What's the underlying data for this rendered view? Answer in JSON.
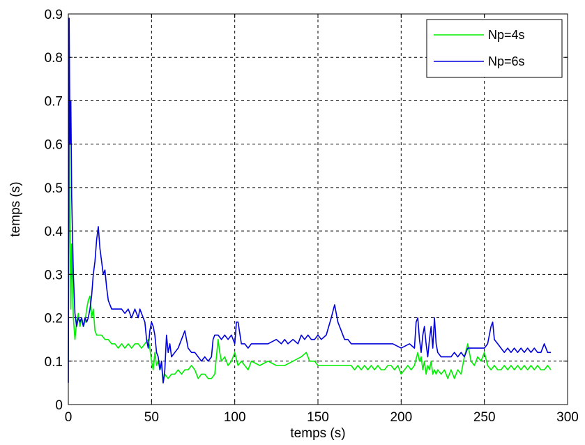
{
  "chart_data": {
    "type": "line",
    "title": "",
    "xlabel": "temps (s)",
    "ylabel": "temps (s)",
    "xlim": [
      0,
      300
    ],
    "ylim": [
      0,
      0.9
    ],
    "xticks": [
      "0",
      "50",
      "100",
      "150",
      "200",
      "250",
      "300"
    ],
    "yticks": [
      "0",
      "0.1",
      "0.2",
      "0.3",
      "0.4",
      "0.5",
      "0.6",
      "0.7",
      "0.8",
      "0.9"
    ],
    "grid": true,
    "legend_position": "top-right",
    "series": [
      {
        "name": "Np=4s",
        "color": "#00ee00",
        "x": [
          0,
          0.5,
          1,
          1.5,
          2,
          3,
          4,
          5,
          6,
          7,
          8,
          9,
          10,
          11,
          12,
          13,
          14,
          15,
          16,
          17,
          18,
          20,
          22,
          24,
          26,
          28,
          30,
          32,
          34,
          36,
          38,
          40,
          42,
          44,
          46,
          48,
          49,
          50,
          51,
          52,
          53,
          54,
          55,
          56,
          57,
          58,
          60,
          62,
          64,
          66,
          68,
          70,
          72,
          74,
          76,
          78,
          80,
          82,
          84,
          86,
          88,
          89,
          90,
          91,
          92,
          94,
          96,
          98,
          100,
          102,
          104,
          106,
          108,
          110,
          115,
          120,
          125,
          130,
          135,
          140,
          143,
          145,
          148,
          150,
          155,
          160,
          165,
          170,
          172,
          174,
          176,
          178,
          180,
          182,
          184,
          186,
          188,
          190,
          192,
          194,
          196,
          198,
          200,
          202,
          204,
          206,
          208,
          210,
          211,
          212,
          213,
          214,
          215,
          216,
          217,
          218,
          219,
          220,
          221,
          222,
          224,
          226,
          228,
          230,
          232,
          234,
          236,
          238,
          240,
          242,
          244,
          246,
          248,
          250,
          252,
          254,
          256,
          258,
          260,
          262,
          264,
          266,
          268,
          270,
          272,
          274,
          276,
          278,
          280,
          282,
          284,
          286,
          288,
          290
        ],
        "y": [
          0.1,
          0.65,
          0.4,
          0.22,
          0.37,
          0.2,
          0.15,
          0.19,
          0.21,
          0.18,
          0.2,
          0.18,
          0.19,
          0.22,
          0.24,
          0.25,
          0.2,
          0.22,
          0.17,
          0.16,
          0.16,
          0.16,
          0.15,
          0.15,
          0.14,
          0.14,
          0.13,
          0.14,
          0.13,
          0.14,
          0.13,
          0.14,
          0.14,
          0.13,
          0.14,
          0.15,
          0.13,
          0.1,
          0.08,
          0.12,
          0.09,
          0.1,
          0.08,
          0.09,
          0.05,
          0.07,
          0.06,
          0.07,
          0.07,
          0.08,
          0.07,
          0.08,
          0.08,
          0.09,
          0.08,
          0.06,
          0.07,
          0.07,
          0.06,
          0.06,
          0.07,
          0.11,
          0.15,
          0.12,
          0.1,
          0.11,
          0.09,
          0.1,
          0.12,
          0.09,
          0.1,
          0.09,
          0.08,
          0.1,
          0.09,
          0.1,
          0.09,
          0.09,
          0.1,
          0.11,
          0.12,
          0.1,
          0.1,
          0.09,
          0.09,
          0.09,
          0.09,
          0.09,
          0.08,
          0.09,
          0.08,
          0.09,
          0.08,
          0.09,
          0.08,
          0.09,
          0.08,
          0.08,
          0.09,
          0.09,
          0.08,
          0.09,
          0.07,
          0.08,
          0.09,
          0.08,
          0.09,
          0.12,
          0.1,
          0.11,
          0.08,
          0.1,
          0.07,
          0.09,
          0.08,
          0.1,
          0.07,
          0.08,
          0.07,
          0.08,
          0.07,
          0.08,
          0.06,
          0.08,
          0.06,
          0.08,
          0.07,
          0.11,
          0.14,
          0.1,
          0.09,
          0.11,
          0.1,
          0.12,
          0.09,
          0.08,
          0.09,
          0.08,
          0.08,
          0.09,
          0.08,
          0.09,
          0.08,
          0.09,
          0.08,
          0.09,
          0.08,
          0.09,
          0.08,
          0.09,
          0.08,
          0.08,
          0.09,
          0.08
        ],
        "legend_text": "Np=4s"
      },
      {
        "name": "Np=6s",
        "color": "#0000dd",
        "x": [
          0,
          0.5,
          1,
          1.5,
          2,
          3,
          4,
          5,
          6,
          7,
          8,
          9,
          10,
          11,
          12,
          13,
          14,
          15,
          16,
          17,
          18,
          19,
          20,
          21,
          22,
          23,
          24,
          25,
          26,
          27,
          28,
          30,
          32,
          34,
          36,
          38,
          40,
          42,
          43,
          44,
          45,
          46,
          47,
          48,
          49,
          50,
          51,
          52,
          53,
          54,
          55,
          56,
          57,
          58,
          59,
          60,
          61,
          62,
          64,
          66,
          68,
          70,
          72,
          74,
          76,
          78,
          80,
          82,
          84,
          86,
          87,
          88,
          90,
          92,
          94,
          96,
          98,
          100,
          101,
          102,
          104,
          106,
          108,
          110,
          115,
          120,
          125,
          128,
          130,
          132,
          135,
          138,
          140,
          142,
          144,
          146,
          148,
          150,
          152,
          155,
          158,
          160,
          162,
          164,
          166,
          168,
          170,
          175,
          180,
          185,
          190,
          195,
          200,
          205,
          208,
          209,
          210,
          211,
          212,
          213,
          214,
          215,
          216,
          217,
          218,
          219,
          220,
          221,
          222,
          224,
          226,
          228,
          230,
          232,
          234,
          236,
          238,
          240,
          244,
          248,
          250,
          252,
          254,
          255,
          256,
          258,
          260,
          262,
          264,
          266,
          268,
          270,
          272,
          274,
          276,
          278,
          280,
          282,
          284,
          286,
          288,
          290
        ],
        "y": [
          0.05,
          0.89,
          0.6,
          0.7,
          0.48,
          0.3,
          0.21,
          0.18,
          0.2,
          0.19,
          0.2,
          0.18,
          0.2,
          0.19,
          0.2,
          0.22,
          0.25,
          0.3,
          0.33,
          0.38,
          0.41,
          0.36,
          0.33,
          0.3,
          0.31,
          0.27,
          0.24,
          0.23,
          0.22,
          0.22,
          0.22,
          0.22,
          0.22,
          0.21,
          0.22,
          0.2,
          0.22,
          0.2,
          0.22,
          0.21,
          0.2,
          0.19,
          0.15,
          0.13,
          0.17,
          0.19,
          0.18,
          0.16,
          0.12,
          0.11,
          0.08,
          0.1,
          0.05,
          0.08,
          0.16,
          0.12,
          0.14,
          0.11,
          0.12,
          0.13,
          0.15,
          0.17,
          0.13,
          0.12,
          0.12,
          0.11,
          0.1,
          0.11,
          0.1,
          0.11,
          0.15,
          0.16,
          0.16,
          0.15,
          0.16,
          0.15,
          0.16,
          0.14,
          0.19,
          0.19,
          0.14,
          0.14,
          0.13,
          0.14,
          0.14,
          0.14,
          0.15,
          0.14,
          0.15,
          0.14,
          0.15,
          0.14,
          0.16,
          0.15,
          0.16,
          0.15,
          0.15,
          0.16,
          0.15,
          0.16,
          0.2,
          0.23,
          0.19,
          0.17,
          0.15,
          0.15,
          0.14,
          0.14,
          0.14,
          0.14,
          0.14,
          0.14,
          0.13,
          0.14,
          0.13,
          0.19,
          0.2,
          0.15,
          0.12,
          0.16,
          0.18,
          0.14,
          0.11,
          0.15,
          0.18,
          0.13,
          0.2,
          0.14,
          0.12,
          0.11,
          0.11,
          0.11,
          0.11,
          0.12,
          0.11,
          0.12,
          0.11,
          0.13,
          0.13,
          0.13,
          0.13,
          0.14,
          0.18,
          0.19,
          0.15,
          0.14,
          0.13,
          0.12,
          0.13,
          0.12,
          0.13,
          0.12,
          0.13,
          0.12,
          0.13,
          0.12,
          0.13,
          0.12,
          0.12,
          0.14,
          0.12,
          0.12
        ],
        "legend_text": "Np=6s"
      }
    ]
  }
}
